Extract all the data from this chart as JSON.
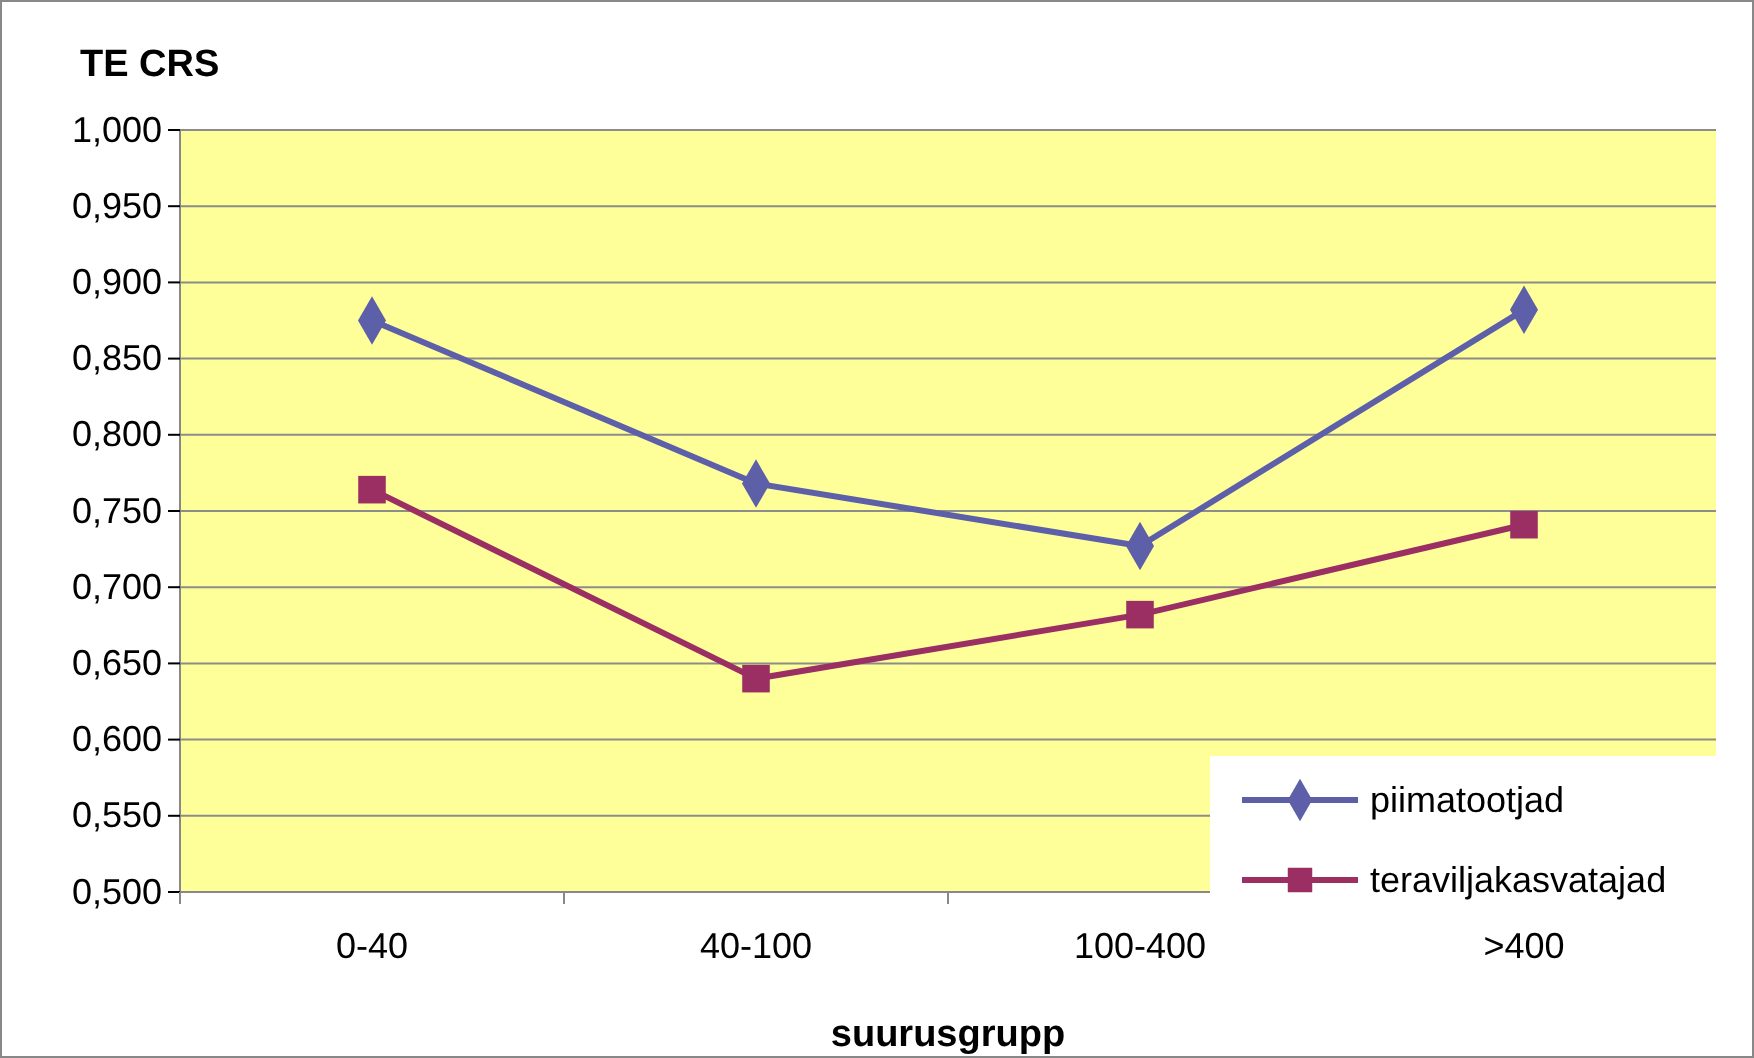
{
  "chart_data": {
    "type": "line",
    "ylabel": "TE CRS",
    "xlabel": "suurusgrupp",
    "categories": [
      "0-40",
      "40-100",
      "100-400",
      ">400"
    ],
    "series": [
      {
        "name": "piimatootjad",
        "color": "#5d5fa8",
        "marker": "diamond",
        "values": [
          0.875,
          0.768,
          0.727,
          0.882
        ]
      },
      {
        "name": "teraviljakasvatajad",
        "color": "#9b2f63",
        "marker": "square",
        "values": [
          0.764,
          0.64,
          0.682,
          0.741
        ]
      }
    ],
    "ylim": [
      0.5,
      1.0
    ],
    "yticks": [
      {
        "value": 0.5,
        "label": "0,500"
      },
      {
        "value": 0.55,
        "label": "0,550"
      },
      {
        "value": 0.6,
        "label": "0,600"
      },
      {
        "value": 0.65,
        "label": "0,650"
      },
      {
        "value": 0.7,
        "label": "0,700"
      },
      {
        "value": 0.75,
        "label": "0,750"
      },
      {
        "value": 0.8,
        "label": "0,800"
      },
      {
        "value": 0.85,
        "label": "0,850"
      },
      {
        "value": 0.9,
        "label": "0,900"
      },
      {
        "value": 0.95,
        "label": "0,950"
      },
      {
        "value": 1.0,
        "label": "1,000"
      }
    ],
    "grid": "y",
    "legend": "bottom right",
    "line_style": "solid"
  }
}
